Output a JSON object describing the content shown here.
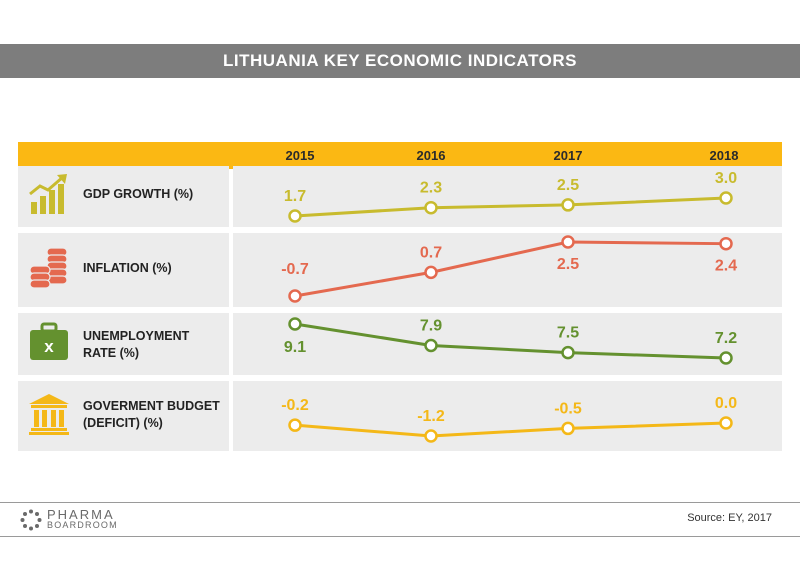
{
  "title": "LITHUANIA KEY ECONOMIC INDICATORS",
  "source": "Source: EY, 2017",
  "logo": {
    "line1": "PHARMA",
    "line2": "BOARDROOM"
  },
  "colors": {
    "header": "#fbb813",
    "gdp": "#c8bb2e",
    "inflation": "#e4694f",
    "unemployment": "#64912f",
    "budget": "#f4b818",
    "title_bar": "#7d7d7d",
    "row_bg": "#ececec"
  },
  "icons": [
    "bar-growth-icon",
    "coin-stack-icon",
    "briefcase-icon",
    "bank-building-icon"
  ],
  "chart_data": {
    "type": "line",
    "title": "LITHUANIA KEY ECONOMIC INDICATORS",
    "x": [
      "2015",
      "2016",
      "2017",
      "2018"
    ],
    "series": [
      {
        "name": "GDP GROWTH (%)",
        "lines": [
          "GDP GROWTH (%)"
        ],
        "values": [
          1.7,
          2.3,
          2.5,
          3.0
        ],
        "labels": [
          "1.7",
          "2.3",
          "2.5",
          "3.0"
        ],
        "color": "#c8bb2e"
      },
      {
        "name": "INFLATION (%)",
        "lines": [
          "INFLATION (%)"
        ],
        "values": [
          -0.7,
          0.7,
          2.5,
          2.4
        ],
        "labels": [
          "-0.7",
          "0.7",
          "2.5",
          "2.4"
        ],
        "color": "#e4694f"
      },
      {
        "name": "UNEMPLOYMENT RATE (%)",
        "lines": [
          "UNEMPLOYMENT",
          "RATE (%)"
        ],
        "values": [
          9.1,
          7.9,
          7.5,
          7.2
        ],
        "labels": [
          "9.1",
          "7.9",
          "7.5",
          "7.2"
        ],
        "color": "#64912f"
      },
      {
        "name": "GOVERMENT BUDGET (DEFICIT) (%)",
        "lines": [
          "GOVERMENT BUDGET",
          "(DEFICIT) (%)"
        ],
        "values": [
          -0.2,
          -1.2,
          -0.5,
          0.0
        ],
        "labels": [
          "-0.2",
          "-1.2",
          "-0.5",
          "0.0"
        ],
        "color": "#f4b818"
      }
    ]
  }
}
